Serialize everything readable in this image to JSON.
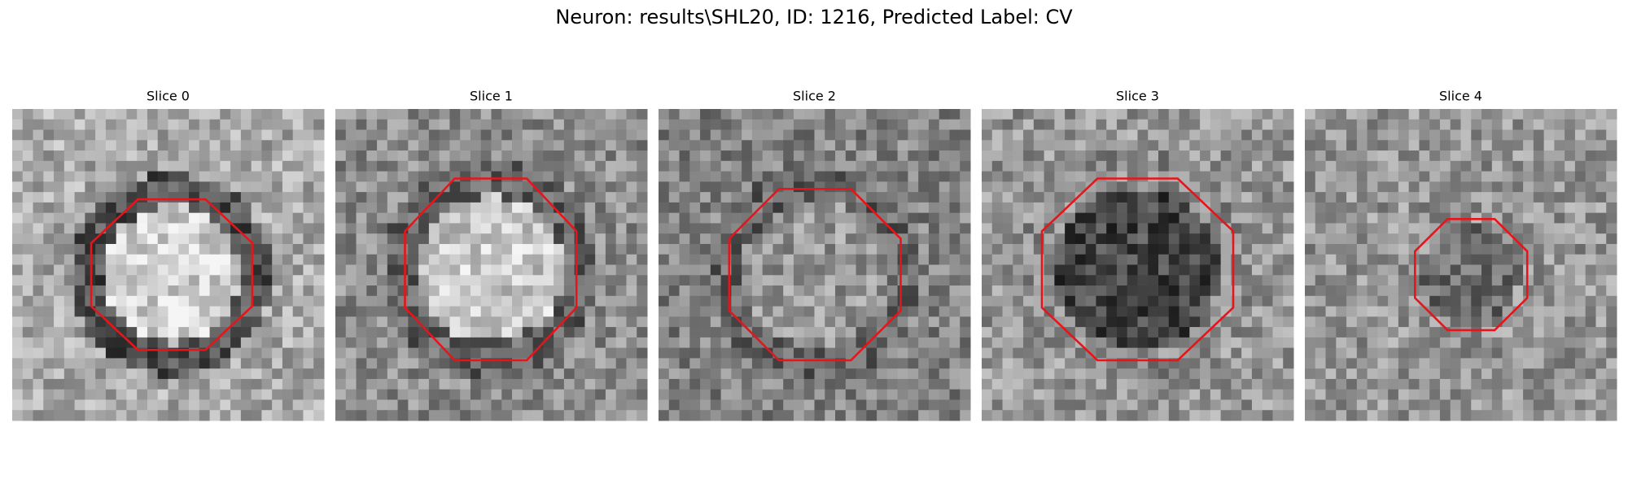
{
  "title": "Neuron: results\\SHL20, ID: 1216, Predicted Label: CV",
  "panels": [
    {
      "title": "Slice 0"
    },
    {
      "title": "Slice 1"
    },
    {
      "title": "Slice 2"
    },
    {
      "title": "Slice 3"
    },
    {
      "title": "Slice 4"
    }
  ]
}
